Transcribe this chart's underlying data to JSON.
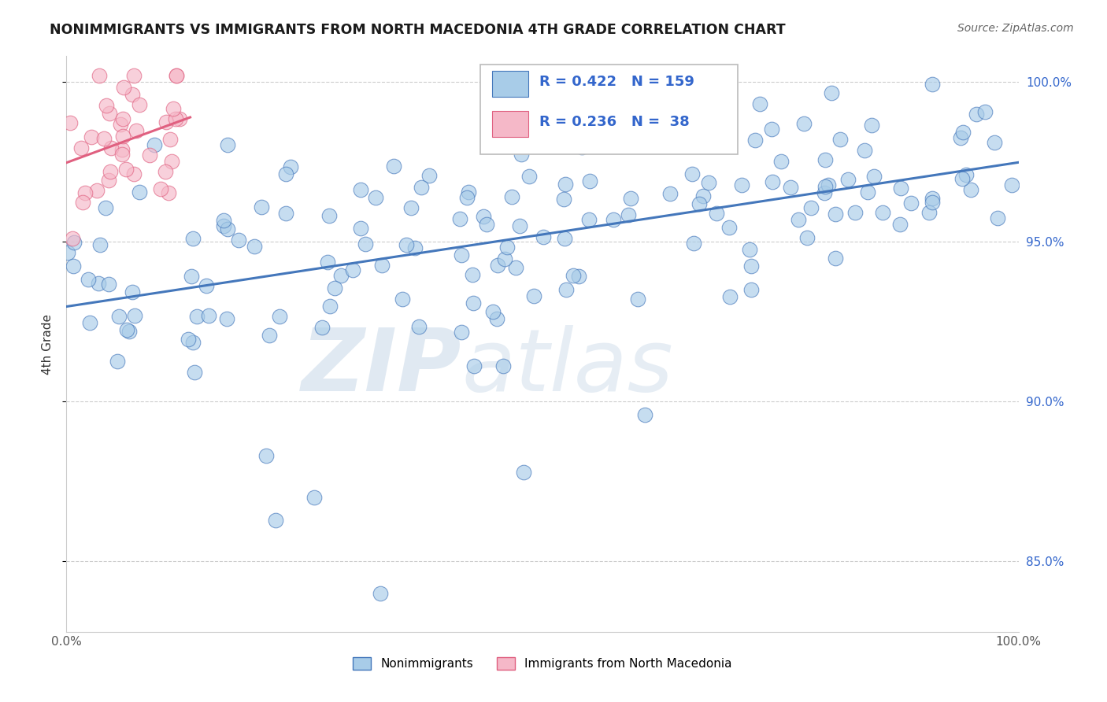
{
  "title": "NONIMMIGRANTS VS IMMIGRANTS FROM NORTH MACEDONIA 4TH GRADE CORRELATION CHART",
  "source": "Source: ZipAtlas.com",
  "ylabel": "4th Grade",
  "xlim": [
    0.0,
    1.0
  ],
  "ylim": [
    0.828,
    1.008
  ],
  "yticks": [
    0.85,
    0.9,
    0.95,
    1.0
  ],
  "ytick_labels": [
    "85.0%",
    "90.0%",
    "95.0%",
    "100.0%"
  ],
  "blue_color": "#a8cce8",
  "pink_color": "#f5b8c8",
  "blue_line_color": "#4477bb",
  "pink_line_color": "#e06080",
  "R_blue": 0.422,
  "N_blue": 159,
  "R_pink": 0.236,
  "N_pink": 38,
  "watermark_ZIP": "ZIP",
  "watermark_atlas": "atlas",
  "background_color": "#ffffff",
  "grid_color": "#cccccc",
  "legend_text_color": "#3366cc",
  "legend_label_color": "#222222"
}
